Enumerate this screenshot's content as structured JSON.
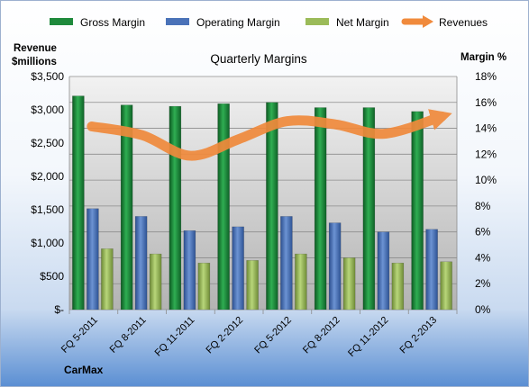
{
  "chart_data": {
    "type": "bar",
    "title": "Quarterly Margins",
    "ylabel_left": [
      "Revenue",
      "$millions"
    ],
    "ylabel_right": "Margin %",
    "source": "CarMax",
    "categories": [
      "FQ 5-2011",
      "FQ 8-2011",
      "FQ 11-2011",
      "FQ 2-2012",
      "FQ 5-2012",
      "FQ 8-2012",
      "FQ 11-2012",
      "FQ 2-2013"
    ],
    "left_axis": {
      "min": 0,
      "max": 3500,
      "step": 500,
      "ticks": [
        "$-",
        "$500",
        "$1,000",
        "$1,500",
        "$2,000",
        "$2,500",
        "$3,000",
        "$3,500"
      ]
    },
    "right_axis": {
      "min": 0,
      "max": 18,
      "step": 2,
      "ticks": [
        "0%",
        "2%",
        "4%",
        "6%",
        "8%",
        "10%",
        "12%",
        "14%",
        "16%",
        "18%"
      ]
    },
    "grid": true,
    "legend_position": "top",
    "series": [
      {
        "name": "Gross Margin",
        "axis": "right",
        "kind": "bar",
        "color": "#1f8a3c",
        "values": [
          16.5,
          15.8,
          15.7,
          15.9,
          16.0,
          15.6,
          15.6,
          15.3
        ]
      },
      {
        "name": "Operating Margin",
        "axis": "right",
        "kind": "bar",
        "color": "#4a72b8",
        "values": [
          7.8,
          7.2,
          6.1,
          6.4,
          7.2,
          6.7,
          6.0,
          6.2
        ]
      },
      {
        "name": "Net Margin",
        "axis": "right",
        "kind": "bar",
        "color": "#9bbb59",
        "values": [
          4.7,
          4.3,
          3.6,
          3.8,
          4.3,
          4.0,
          3.6,
          3.7
        ]
      },
      {
        "name": "Revenues",
        "axis": "left",
        "kind": "line",
        "color": "#f08a3c",
        "values": [
          2750,
          2620,
          2310,
          2560,
          2830,
          2780,
          2640,
          2900
        ]
      }
    ]
  }
}
